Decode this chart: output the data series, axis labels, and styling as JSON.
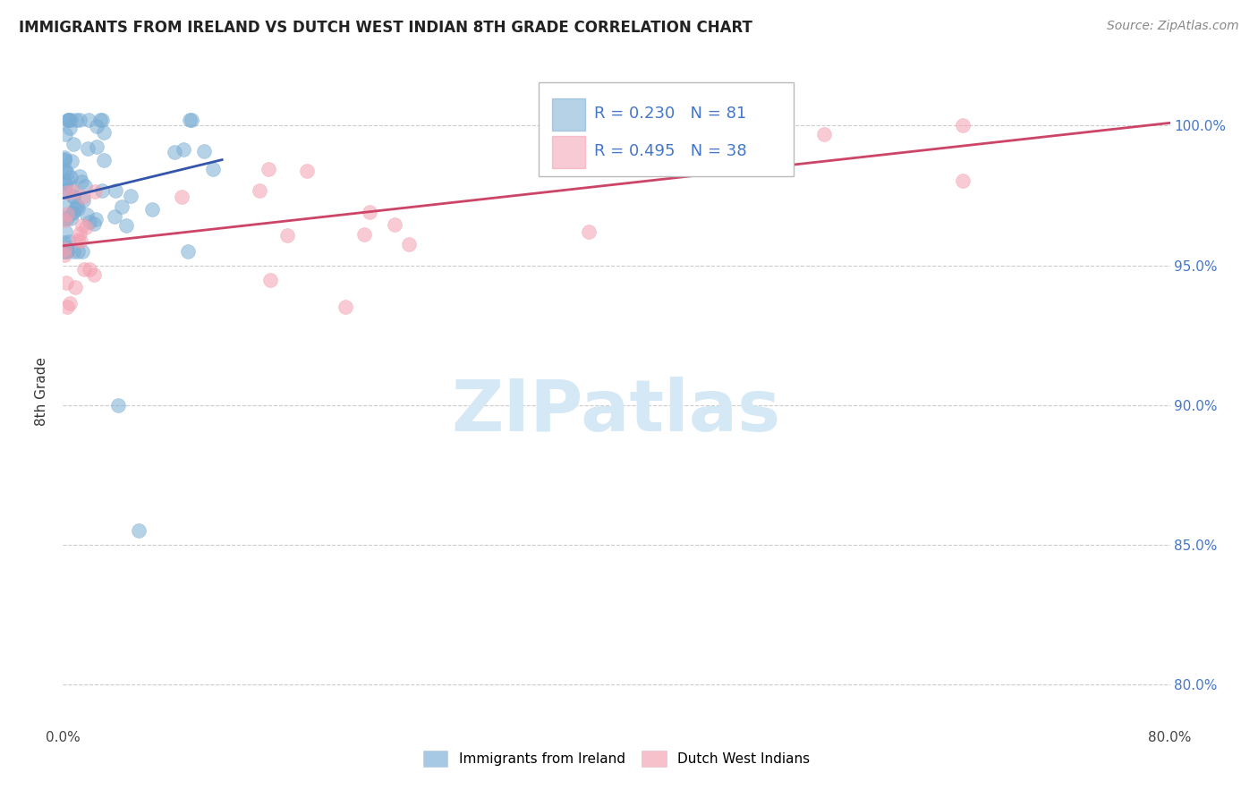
{
  "title": "IMMIGRANTS FROM IRELAND VS DUTCH WEST INDIAN 8TH GRADE CORRELATION CHART",
  "source": "Source: ZipAtlas.com",
  "ylabel": "8th Grade",
  "blue_R": 0.23,
  "blue_N": 81,
  "pink_R": 0.495,
  "pink_N": 38,
  "blue_color": "#7aadd4",
  "pink_color": "#f4a0b0",
  "blue_line_color": "#3355AA",
  "pink_line_color": "#CC4466",
  "watermark_color": "#d5e8f5",
  "legend_label_1": "Immigrants from Ireland",
  "legend_label_2": "Dutch West Indians",
  "xlim": [
    0.0,
    0.8
  ],
  "ylim": [
    0.785,
    1.025
  ],
  "ytick_vals": [
    0.8,
    0.85,
    0.9,
    0.95,
    1.0
  ],
  "ytick_labels": [
    "80.0%",
    "85.0%",
    "90.0%",
    "95.0%",
    "100.0%"
  ],
  "xtick_vals": [
    0.0,
    0.8
  ],
  "xtick_labels": [
    "0.0%",
    "80.0%"
  ],
  "blue_slope": 0.12,
  "blue_intercept": 0.974,
  "blue_line_xmax": 0.115,
  "pink_slope": 0.055,
  "pink_intercept": 0.957,
  "pink_line_xmax": 0.8
}
